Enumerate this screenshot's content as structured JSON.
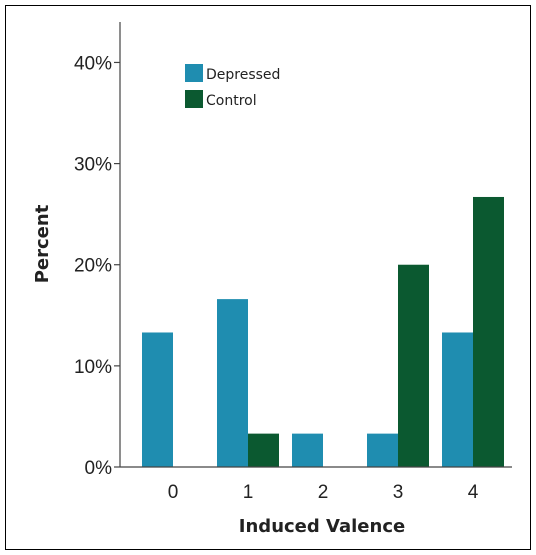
{
  "chart_data": {
    "type": "bar",
    "xlabel": "Induced Valence",
    "ylabel": "Percent",
    "categories": [
      "0",
      "1",
      "2",
      "3",
      "4"
    ],
    "ylim": [
      0,
      44
    ],
    "yticks": [
      0,
      10,
      20,
      30,
      40
    ],
    "ytick_labels": [
      "0%",
      "10%",
      "20%",
      "30%",
      "40%"
    ],
    "series": [
      {
        "name": "Depressed",
        "color": "#1f8db0",
        "values": [
          13.3,
          16.6,
          3.3,
          3.3,
          13.3
        ]
      },
      {
        "name": "Control",
        "color": "#0b5930",
        "values": [
          0,
          3.3,
          0,
          20.0,
          26.7
        ]
      }
    ],
    "legend": "top-left",
    "grid": false
  }
}
